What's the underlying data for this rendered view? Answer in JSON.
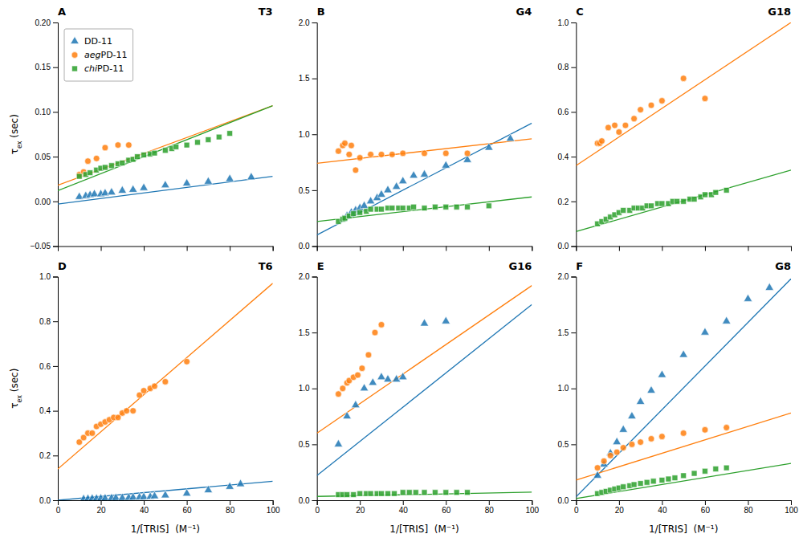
{
  "chart_data": [
    {
      "type": "scatter",
      "title": "T3",
      "annotations": [
        "A"
      ],
      "y_label": "τex (sec)",
      "xlim": [
        0,
        100
      ],
      "xticks": [
        0,
        20,
        40,
        60,
        80,
        100
      ],
      "ylim": [
        -0.05,
        0.2
      ],
      "yticks": [
        {
          "value": -0.05,
          "label": "−0.05"
        },
        {
          "value": 0.0,
          "label": "0.00"
        },
        {
          "value": 0.05,
          "label": "0.05"
        },
        {
          "value": 0.1,
          "label": "0.10"
        },
        {
          "value": 0.15,
          "label": "0.15"
        },
        {
          "value": 0.2,
          "label": "0.20"
        }
      ],
      "tick_labels": "y",
      "legend": "upper left",
      "series": [
        {
          "name": "DD-11",
          "marker": "triangle",
          "color": "#1f77b4",
          "x": [
            10,
            13,
            15,
            17,
            20,
            22,
            25,
            30,
            35,
            40,
            50,
            60,
            70,
            80,
            90
          ],
          "values": [
            0.005,
            0.006,
            0.007,
            0.008,
            0.008,
            0.009,
            0.01,
            0.012,
            0.013,
            0.015,
            0.018,
            0.02,
            0.022,
            0.025,
            0.027
          ],
          "fit_x": [
            0,
            100
          ],
          "fit_y": [
            -0.003,
            0.028
          ]
        },
        {
          "name": "aegPD-11",
          "marker": "circle",
          "color": "#ff7f0e",
          "x": [
            10,
            12,
            14,
            18,
            22,
            28,
            33
          ],
          "values": [
            0.03,
            0.033,
            0.045,
            0.048,
            0.06,
            0.063,
            0.063
          ],
          "fit_x": [
            0,
            100
          ],
          "fit_y": [
            0.018,
            0.107
          ]
        },
        {
          "name": "chiPD-11",
          "marker": "square",
          "color": "#2ca02c",
          "x": [
            10,
            13,
            15,
            18,
            20,
            22,
            25,
            28,
            30,
            33,
            35,
            37,
            40,
            43,
            45,
            50,
            53,
            55,
            60,
            65,
            70,
            75,
            80
          ],
          "values": [
            0.028,
            0.03,
            0.032,
            0.035,
            0.037,
            0.038,
            0.04,
            0.042,
            0.043,
            0.046,
            0.047,
            0.05,
            0.052,
            0.053,
            0.054,
            0.057,
            0.059,
            0.061,
            0.063,
            0.066,
            0.069,
            0.072,
            0.076
          ],
          "fit_x": [
            0,
            100
          ],
          "fit_y": [
            0.012,
            0.107
          ]
        }
      ]
    },
    {
      "type": "scatter",
      "title": "G4",
      "annotations": [
        "B"
      ],
      "xlim": [
        0,
        100
      ],
      "xticks": [
        0,
        20,
        40,
        60,
        80,
        100
      ],
      "ylim": [
        0,
        2.0
      ],
      "yticks": [
        {
          "value": 0.0,
          "label": "0.0"
        },
        {
          "value": 0.5,
          "label": "0.5"
        },
        {
          "value": 1.0,
          "label": "1.0"
        },
        {
          "value": 1.5,
          "label": "1.5"
        },
        {
          "value": 2.0,
          "label": "2.0"
        }
      ],
      "tick_labels": "y",
      "series": [
        {
          "marker": "triangle",
          "color": "#1f77b4",
          "x": [
            12,
            14,
            16,
            18,
            20,
            22,
            25,
            28,
            30,
            33,
            37,
            40,
            45,
            50,
            60,
            70,
            80,
            90
          ],
          "values": [
            0.24,
            0.27,
            0.3,
            0.32,
            0.34,
            0.36,
            0.4,
            0.43,
            0.46,
            0.5,
            0.53,
            0.58,
            0.63,
            0.64,
            0.72,
            0.77,
            0.88,
            0.96
          ],
          "fit_x": [
            0,
            100
          ],
          "fit_y": [
            0.1,
            1.1
          ]
        },
        {
          "marker": "circle",
          "color": "#ff7f0e",
          "x": [
            10,
            12,
            13,
            15,
            16,
            18,
            20,
            25,
            30,
            35,
            40,
            50,
            60,
            70
          ],
          "values": [
            0.85,
            0.9,
            0.92,
            0.82,
            0.9,
            0.68,
            0.79,
            0.82,
            0.82,
            0.82,
            0.83,
            0.83,
            0.83,
            0.83
          ],
          "fit_x": [
            0,
            100
          ],
          "fit_y": [
            0.74,
            0.96
          ]
        },
        {
          "marker": "square",
          "color": "#2ca02c",
          "x": [
            10,
            12,
            13,
            15,
            17,
            20,
            23,
            25,
            28,
            30,
            33,
            35,
            38,
            40,
            43,
            45,
            50,
            55,
            60,
            65,
            70,
            80
          ],
          "values": [
            0.22,
            0.24,
            0.25,
            0.27,
            0.29,
            0.3,
            0.31,
            0.33,
            0.33,
            0.33,
            0.34,
            0.34,
            0.34,
            0.34,
            0.34,
            0.35,
            0.34,
            0.35,
            0.35,
            0.35,
            0.35,
            0.36
          ],
          "fit_x": [
            0,
            100
          ],
          "fit_y": [
            0.22,
            0.44
          ]
        }
      ]
    },
    {
      "type": "scatter",
      "title": "G18",
      "annotations": [
        "C"
      ],
      "xlim": [
        0,
        100
      ],
      "xticks": [
        0,
        20,
        40,
        60,
        80,
        100
      ],
      "ylim": [
        0,
        1.0
      ],
      "yticks": [
        {
          "value": 0.0,
          "label": "0.0"
        },
        {
          "value": 0.2,
          "label": "0.2"
        },
        {
          "value": 0.4,
          "label": "0.4"
        },
        {
          "value": 0.6,
          "label": "0.6"
        },
        {
          "value": 0.8,
          "label": "0.8"
        },
        {
          "value": 1.0,
          "label": "1.0"
        }
      ],
      "tick_labels": "y",
      "series": [
        {
          "marker": "circle",
          "color": "#ff7f0e",
          "x": [
            10,
            11,
            12,
            15,
            18,
            20,
            23,
            27,
            30,
            35,
            40,
            50,
            60
          ],
          "values": [
            0.46,
            0.46,
            0.47,
            0.53,
            0.54,
            0.51,
            0.54,
            0.57,
            0.61,
            0.63,
            0.65,
            0.75,
            0.66
          ],
          "fit_x": [
            0,
            100
          ],
          "fit_y": [
            0.36,
            1.0
          ]
        },
        {
          "marker": "square",
          "color": "#2ca02c",
          "x": [
            10,
            12,
            14,
            16,
            18,
            20,
            22,
            25,
            27,
            29,
            31,
            33,
            35,
            38,
            40,
            43,
            45,
            47,
            50,
            53,
            55,
            58,
            60,
            63,
            65,
            70
          ],
          "values": [
            0.1,
            0.11,
            0.12,
            0.13,
            0.14,
            0.15,
            0.16,
            0.16,
            0.17,
            0.17,
            0.17,
            0.18,
            0.18,
            0.19,
            0.19,
            0.19,
            0.2,
            0.2,
            0.2,
            0.21,
            0.21,
            0.22,
            0.23,
            0.23,
            0.24,
            0.25
          ],
          "fit_x": [
            0,
            100
          ],
          "fit_y": [
            0.065,
            0.34
          ]
        }
      ]
    },
    {
      "type": "scatter",
      "title": "T6",
      "annotations": [
        "D"
      ],
      "y_label": "τex (sec)",
      "x_label": "1/[TRIS]  (M⁻¹)",
      "xlim": [
        0,
        100
      ],
      "xticks": [
        0,
        20,
        40,
        60,
        80,
        100
      ],
      "ylim": [
        0,
        1.0
      ],
      "yticks": [
        {
          "value": 0.0,
          "label": "0.0"
        },
        {
          "value": 0.2,
          "label": "0.2"
        },
        {
          "value": 0.4,
          "label": "0.4"
        },
        {
          "value": 0.6,
          "label": "0.6"
        },
        {
          "value": 0.8,
          "label": "0.8"
        },
        {
          "value": 1.0,
          "label": "1.0"
        }
      ],
      "series": [
        {
          "marker": "triangle",
          "color": "#1f77b4",
          "x": [
            12,
            14,
            16,
            18,
            20,
            22,
            25,
            27,
            30,
            33,
            35,
            38,
            40,
            43,
            45,
            50,
            60,
            70,
            80,
            85
          ],
          "values": [
            0.005,
            0.006,
            0.007,
            0.007,
            0.008,
            0.008,
            0.009,
            0.01,
            0.01,
            0.011,
            0.012,
            0.013,
            0.014,
            0.015,
            0.018,
            0.022,
            0.03,
            0.045,
            0.06,
            0.072
          ],
          "fit_x": [
            0,
            100
          ],
          "fit_y": [
            0.0,
            0.085
          ]
        },
        {
          "marker": "circle",
          "color": "#ff7f0e",
          "x": [
            10,
            12,
            14,
            16,
            18,
            20,
            22,
            24,
            26,
            28,
            30,
            32,
            35,
            38,
            40,
            43,
            45,
            50,
            60
          ],
          "values": [
            0.26,
            0.28,
            0.3,
            0.3,
            0.33,
            0.34,
            0.35,
            0.36,
            0.37,
            0.37,
            0.39,
            0.4,
            0.4,
            0.47,
            0.49,
            0.5,
            0.51,
            0.53,
            0.62
          ],
          "fit_x": [
            0,
            100
          ],
          "fit_y": [
            0.14,
            0.97
          ]
        }
      ]
    },
    {
      "type": "scatter",
      "title": "G16",
      "annotations": [
        "E"
      ],
      "x_label": "1/[TRIS]  (M⁻¹)",
      "xlim": [
        0,
        100
      ],
      "xticks": [
        0,
        20,
        40,
        60,
        80,
        100
      ],
      "ylim": [
        0,
        2.0
      ],
      "yticks": [
        {
          "value": 0.0,
          "label": "0.0"
        },
        {
          "value": 0.5,
          "label": "0.5"
        },
        {
          "value": 1.0,
          "label": "1.0"
        },
        {
          "value": 1.5,
          "label": "1.5"
        },
        {
          "value": 2.0,
          "label": "2.0"
        }
      ],
      "series": [
        {
          "marker": "triangle",
          "color": "#1f77b4",
          "x": [
            10,
            14,
            18,
            22,
            26,
            30,
            33,
            37,
            40,
            50,
            60
          ],
          "values": [
            0.5,
            0.75,
            0.85,
            1.0,
            1.05,
            1.1,
            1.08,
            1.08,
            1.1,
            1.58,
            1.6
          ],
          "fit_x": [
            0,
            100
          ],
          "fit_y": [
            0.22,
            1.75
          ]
        },
        {
          "marker": "circle",
          "color": "#ff7f0e",
          "x": [
            10,
            12,
            14,
            15,
            17,
            19,
            21,
            24,
            27,
            30
          ],
          "values": [
            0.95,
            1.0,
            1.05,
            1.07,
            1.1,
            1.12,
            1.18,
            1.3,
            1.5,
            1.57
          ],
          "fit_x": [
            0,
            100
          ],
          "fit_y": [
            0.6,
            1.92
          ]
        },
        {
          "marker": "square",
          "color": "#2ca02c",
          "x": [
            10,
            12,
            14,
            17,
            20,
            23,
            25,
            28,
            30,
            33,
            36,
            40,
            43,
            46,
            50,
            55,
            60,
            65,
            70
          ],
          "values": [
            0.05,
            0.05,
            0.05,
            0.05,
            0.06,
            0.06,
            0.06,
            0.06,
            0.06,
            0.06,
            0.06,
            0.07,
            0.07,
            0.07,
            0.07,
            0.07,
            0.07,
            0.07,
            0.07
          ],
          "fit_x": [
            0,
            100
          ],
          "fit_y": [
            0.034,
            0.072
          ]
        }
      ]
    },
    {
      "type": "scatter",
      "title": "G8",
      "annotations": [
        "F"
      ],
      "x_label": "1/[TRIS]  (M⁻¹)",
      "xlim": [
        0,
        100
      ],
      "xticks": [
        0,
        20,
        40,
        60,
        80,
        100
      ],
      "ylim": [
        0,
        2.0
      ],
      "yticks": [
        {
          "value": 0.0,
          "label": "0.0"
        },
        {
          "value": 0.5,
          "label": "0.5"
        },
        {
          "value": 1.0,
          "label": "1.0"
        },
        {
          "value": 1.5,
          "label": "1.5"
        },
        {
          "value": 2.0,
          "label": "2.0"
        }
      ],
      "series": [
        {
          "marker": "triangle",
          "color": "#1f77b4",
          "x": [
            10,
            13,
            16,
            19,
            22,
            26,
            30,
            35,
            40,
            50,
            60,
            70,
            80,
            90
          ],
          "values": [
            0.22,
            0.32,
            0.42,
            0.52,
            0.63,
            0.75,
            0.88,
            0.98,
            1.12,
            1.3,
            1.5,
            1.6,
            1.8,
            1.9
          ],
          "fit_x": [
            0,
            100
          ],
          "fit_y": [
            0.03,
            1.98
          ]
        },
        {
          "marker": "circle",
          "color": "#ff7f0e",
          "x": [
            10,
            13,
            16,
            19,
            22,
            26,
            30,
            35,
            40,
            50,
            60,
            70
          ],
          "values": [
            0.29,
            0.35,
            0.4,
            0.43,
            0.47,
            0.5,
            0.52,
            0.55,
            0.57,
            0.6,
            0.63,
            0.65
          ],
          "fit_x": [
            0,
            100
          ],
          "fit_y": [
            0.18,
            0.78
          ]
        },
        {
          "marker": "square",
          "color": "#2ca02c",
          "x": [
            10,
            12,
            14,
            16,
            18,
            20,
            22,
            25,
            27,
            30,
            33,
            36,
            40,
            43,
            46,
            50,
            55,
            60,
            65,
            70
          ],
          "values": [
            0.06,
            0.07,
            0.08,
            0.09,
            0.1,
            0.11,
            0.12,
            0.13,
            0.14,
            0.15,
            0.16,
            0.17,
            0.18,
            0.19,
            0.2,
            0.22,
            0.24,
            0.26,
            0.28,
            0.29
          ],
          "fit_x": [
            0,
            100
          ],
          "fit_y": [
            0.015,
            0.33
          ]
        }
      ]
    }
  ]
}
